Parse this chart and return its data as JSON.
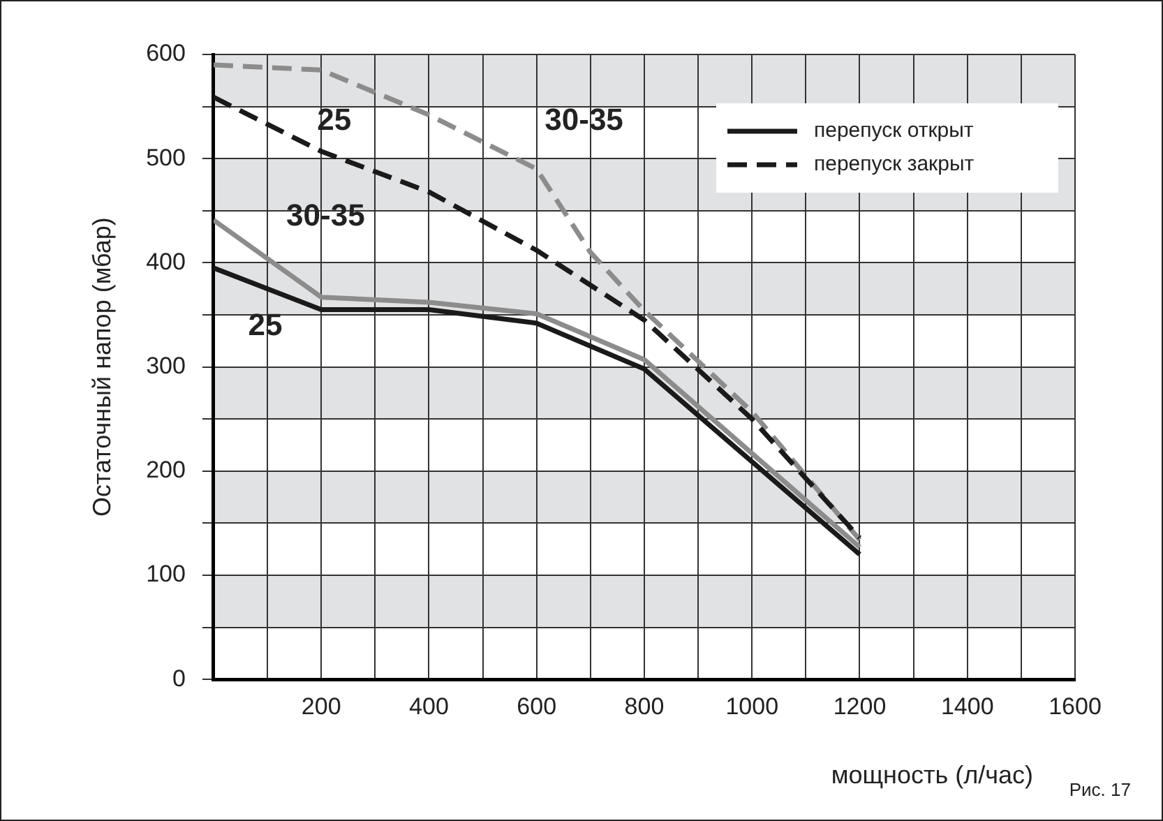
{
  "chart_data": {
    "type": "line",
    "xlabel": "мощность (л/час)",
    "ylabel": "Остаточный напор (мбар)",
    "series": [
      {
        "name": "перепуск открыт",
        "color": "#1a1a1a",
        "line_style": "solid",
        "x": [
          0,
          200,
          400,
          600,
          800,
          1200
        ],
        "values": [
          395,
          355,
          355,
          342,
          298,
          120
        ]
      },
      {
        "color": "#8c8c8c",
        "line_style": "solid",
        "x": [
          0,
          200,
          400,
          600,
          800,
          1200
        ],
        "values": [
          441,
          367,
          362,
          351,
          307,
          127
        ]
      },
      {
        "name": "перепуск закрыт",
        "color": "#1a1a1a",
        "line_style": "dashed",
        "x": [
          0,
          200,
          400,
          600,
          800,
          1000,
          1200
        ],
        "values": [
          559,
          507,
          468,
          412,
          345,
          250,
          136
        ]
      },
      {
        "color": "#8c8c8c",
        "line_style": "dashed",
        "x": [
          0,
          200,
          400,
          600,
          700,
          800,
          1000,
          1200
        ],
        "values": [
          590,
          585,
          542,
          490,
          410,
          354,
          257,
          134
        ]
      }
    ],
    "xlim": [
      0,
      1600
    ],
    "xticks": [
      {
        "value": 0,
        "label": null
      },
      {
        "value": 100,
        "label": null
      },
      200,
      {
        "value": 300,
        "label": null
      },
      400,
      {
        "value": 500,
        "label": null
      },
      600,
      {
        "value": 700,
        "label": null
      },
      800,
      {
        "value": 900,
        "label": null
      },
      1000,
      {
        "value": 1100,
        "label": null
      },
      1200,
      {
        "value": 1300,
        "label": null
      },
      1400,
      {
        "value": 1500,
        "label": null
      },
      1600
    ],
    "ylim": [
      0,
      600
    ],
    "yticks": [
      0,
      {
        "value": 50,
        "label": null
      },
      100,
      {
        "value": 150,
        "label": null
      },
      200,
      {
        "value": 250,
        "label": null
      },
      300,
      {
        "value": 350,
        "label": null
      },
      400,
      {
        "value": 450,
        "label": null
      },
      500,
      {
        "value": 550,
        "label": null
      },
      600
    ],
    "bands": [
      {
        "axis": "y",
        "from": 50,
        "to": 100,
        "color": "#e1e2e4"
      },
      {
        "axis": "y",
        "from": 150,
        "to": 200,
        "color": "#e1e2e4"
      },
      {
        "axis": "y",
        "from": 250,
        "to": 300,
        "color": "#e1e2e4"
      },
      {
        "axis": "y",
        "from": 350,
        "to": 400,
        "color": "#e1e2e4"
      },
      {
        "axis": "y",
        "from": 450,
        "to": 500,
        "color": "#e1e2e4"
      },
      {
        "axis": "y",
        "from": 550,
        "to": 600,
        "color": "#e1e2e4"
      }
    ],
    "annotations": [
      "25",
      "30-35",
      "25",
      "30-35",
      "Рис. 17"
    ],
    "grid": true,
    "legend": "top right",
    "marker": "none"
  }
}
